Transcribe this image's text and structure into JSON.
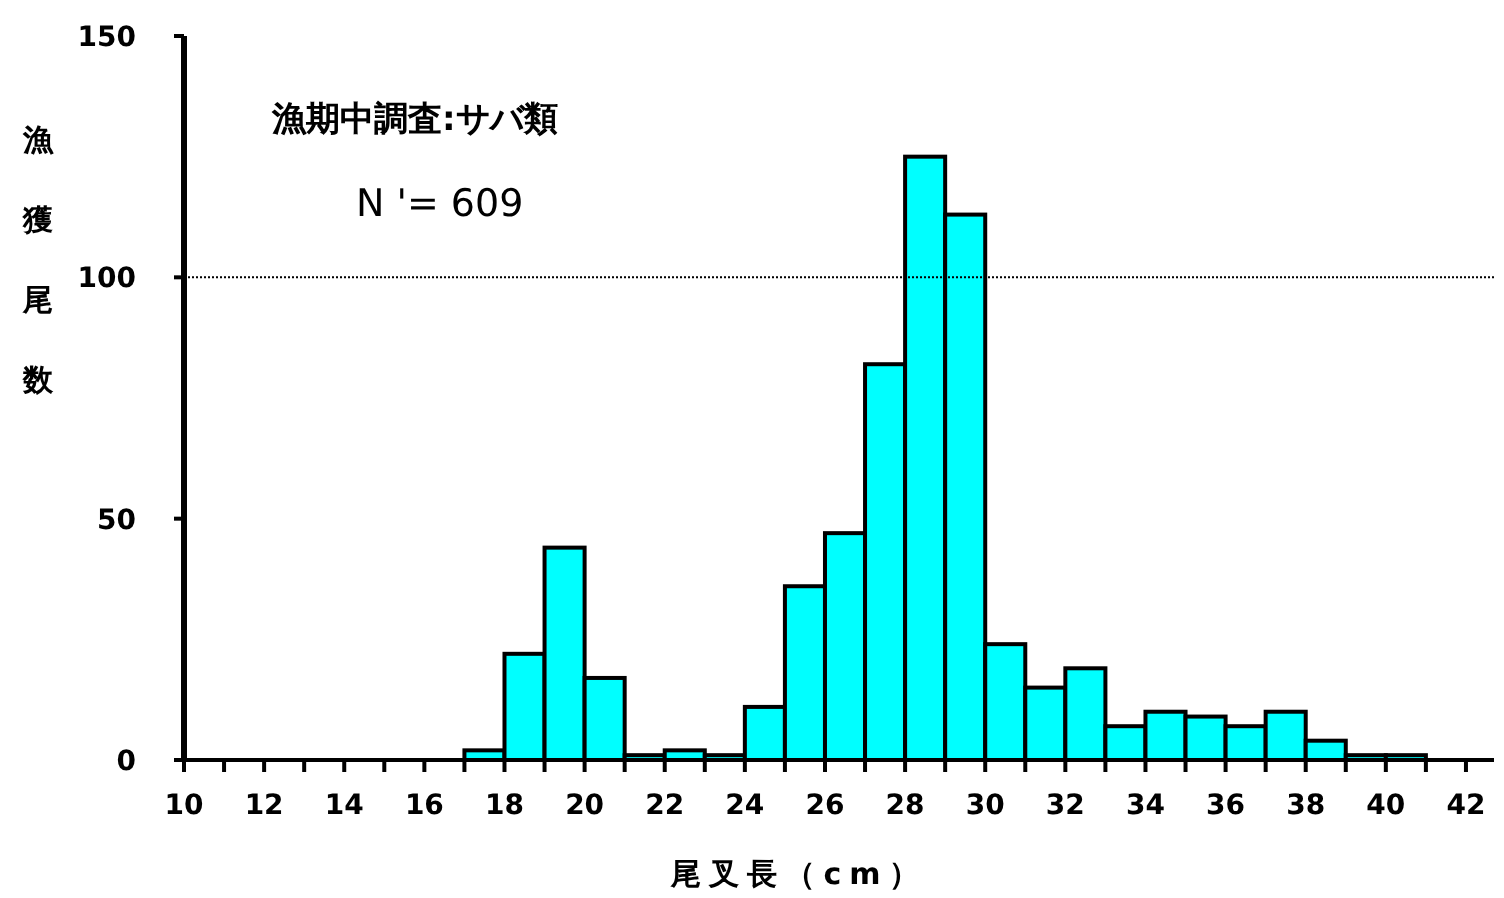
{
  "chart_data": {
    "type": "histogram",
    "xlabel": "尾叉長（cm）",
    "ylabel": "漁獲尾数",
    "annotations": [
      "漁期中調査:サバ類",
      "N '= 609"
    ],
    "bins": [
      10,
      11,
      12,
      13,
      14,
      15,
      16,
      17,
      18,
      19,
      20,
      21,
      22,
      23,
      24,
      25,
      26,
      27,
      28,
      29,
      30,
      31,
      32,
      33,
      34,
      35,
      36,
      37,
      38,
      39,
      40,
      41,
      42
    ],
    "values": [
      0,
      0,
      0,
      0,
      0,
      0,
      0,
      2,
      22,
      44,
      17,
      1,
      2,
      1,
      11,
      36,
      47,
      82,
      125,
      113,
      24,
      15,
      19,
      7,
      10,
      9,
      7,
      10,
      4,
      1,
      1,
      0
    ],
    "color": "#00ffff",
    "xlim": [
      10,
      42.7
    ],
    "xticks": [
      10,
      {
        "value": 11,
        "label": null
      },
      12,
      {
        "value": 13,
        "label": null
      },
      14,
      {
        "value": 15,
        "label": null
      },
      16,
      {
        "value": 17,
        "label": null
      },
      18,
      {
        "value": 19,
        "label": null
      },
      20,
      {
        "value": 21,
        "label": null
      },
      22,
      {
        "value": 23,
        "label": null
      },
      24,
      {
        "value": 25,
        "label": null
      },
      26,
      {
        "value": 27,
        "label": null
      },
      28,
      {
        "value": 29,
        "label": null
      },
      30,
      {
        "value": 31,
        "label": null
      },
      32,
      {
        "value": 33,
        "label": null
      },
      34,
      {
        "value": 35,
        "label": null
      },
      36,
      {
        "value": 37,
        "label": null
      },
      38,
      {
        "value": 39,
        "label": null
      },
      40,
      {
        "value": 41,
        "label": null
      },
      42
    ],
    "ylim": [
      0,
      150
    ],
    "yticks": [
      0,
      50,
      100,
      150
    ],
    "ref_lines": [
      {
        "axis": "y",
        "value": 100,
        "color": "#000000",
        "line_style": "dotted"
      }
    ],
    "grid": false
  }
}
